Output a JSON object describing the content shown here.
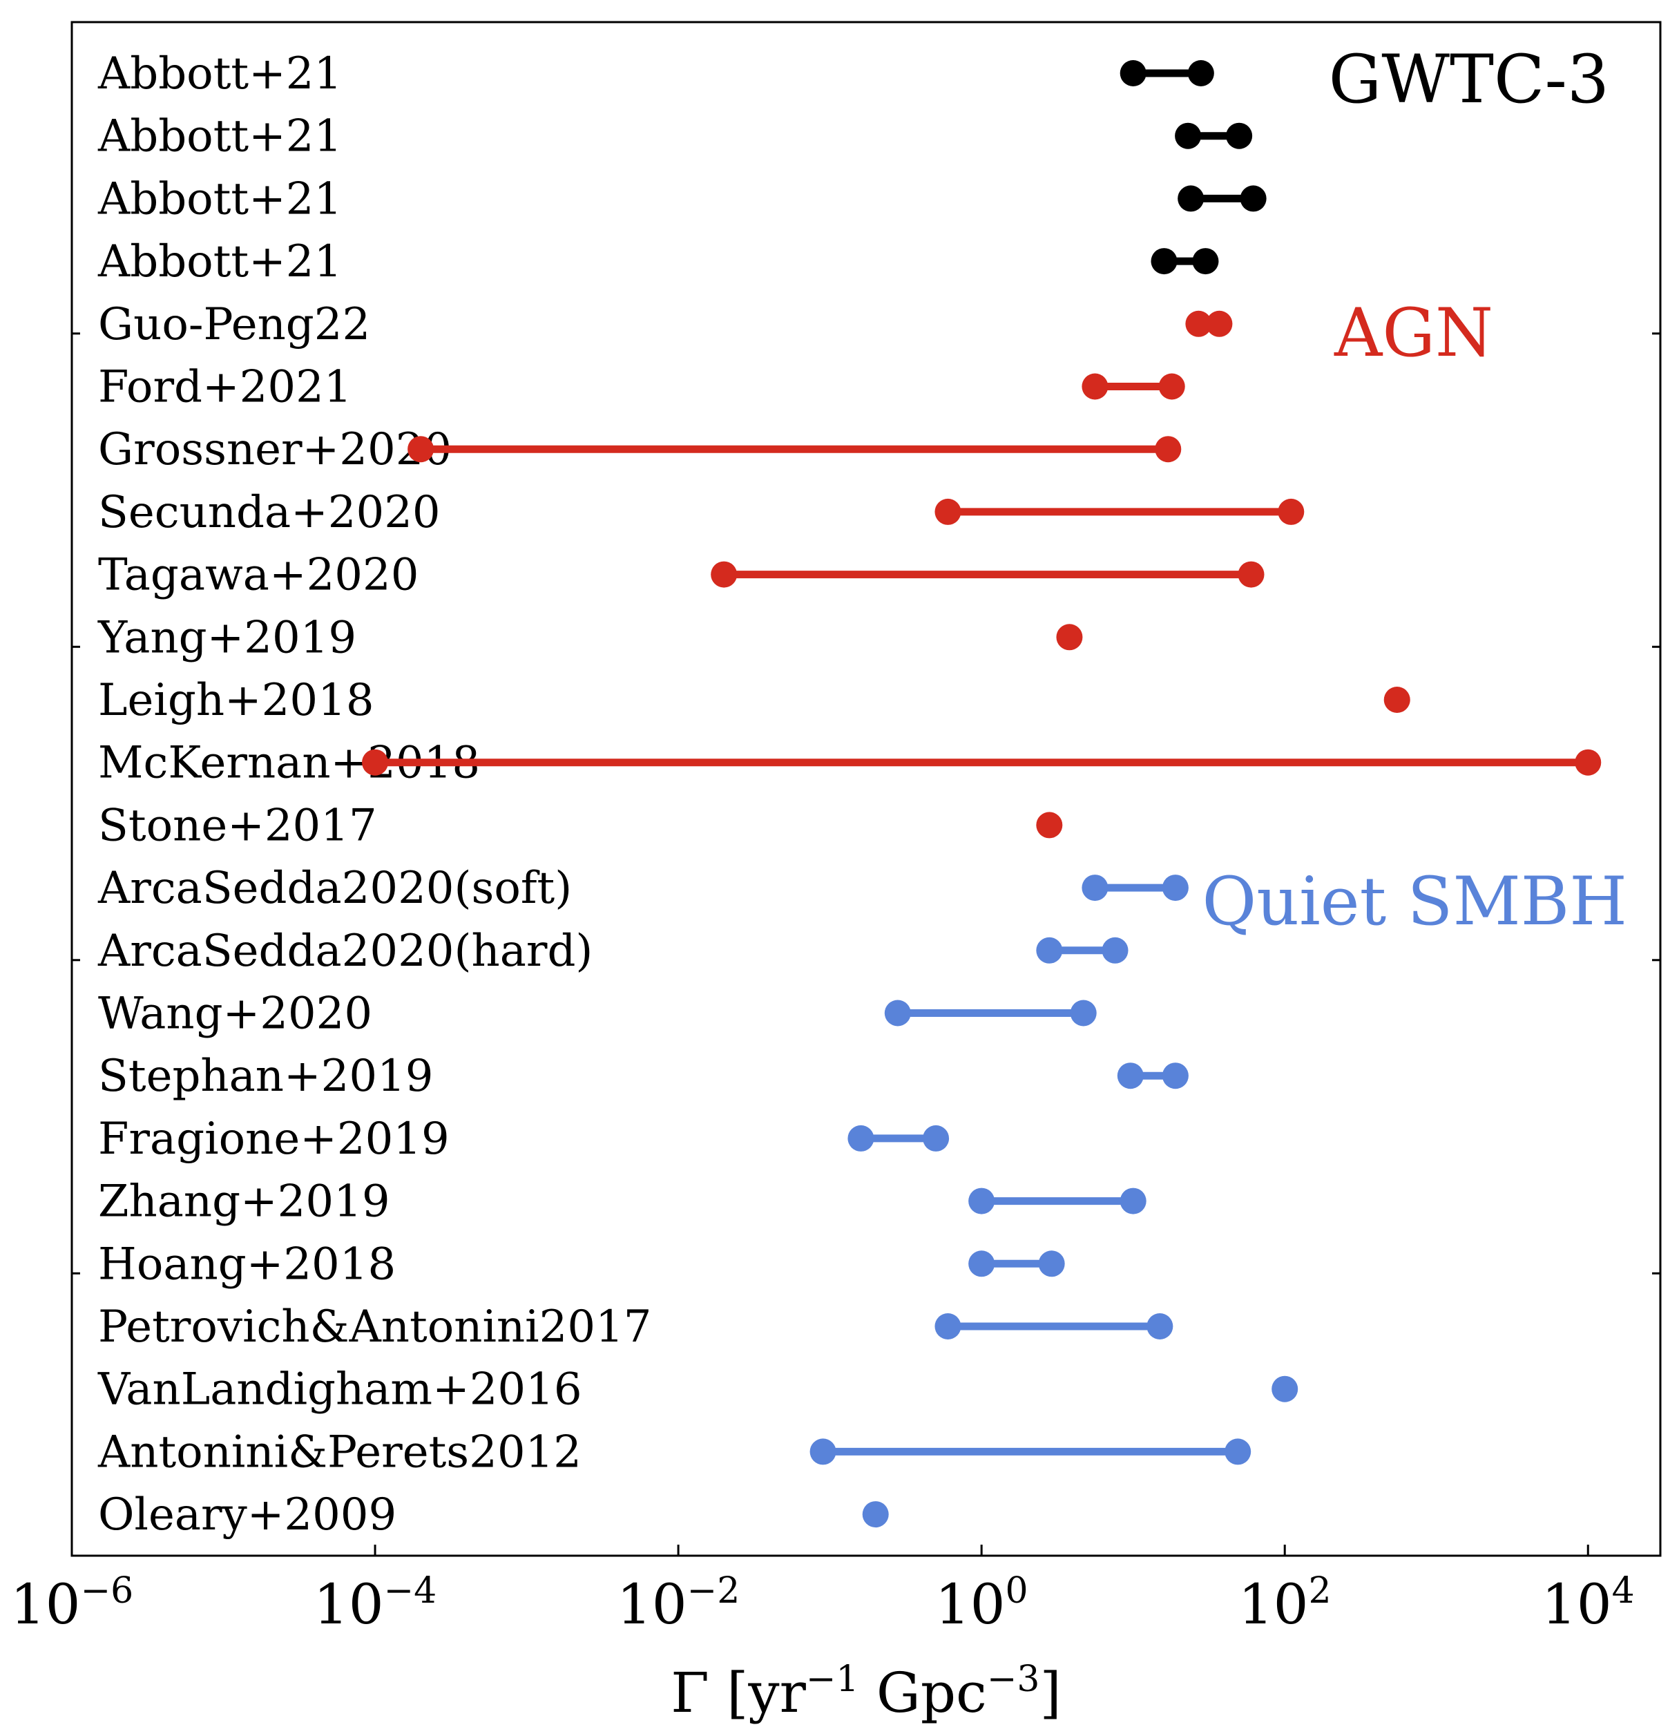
{
  "chart_data": {
    "type": "range-dot",
    "title": "",
    "xscale": "log",
    "xlim": [
      1e-06,
      30000
    ],
    "xticks": [
      {
        "base": "10",
        "exp": "−6",
        "value": 1e-06
      },
      {
        "base": "10",
        "exp": "−4",
        "value": 0.0001
      },
      {
        "base": "10",
        "exp": "−2",
        "value": 0.01
      },
      {
        "base": "10",
        "exp": "0",
        "value": 1
      },
      {
        "base": "10",
        "exp": "2",
        "value": 100
      },
      {
        "base": "10",
        "exp": "4",
        "value": 10000
      }
    ],
    "xlabel": {
      "main": "Γ [yr",
      "sup1": "−1",
      "mid": " Gpc",
      "sup2": "−3",
      "end": "]"
    },
    "groups": [
      {
        "name": "GWTC-3",
        "color": "#000000"
      },
      {
        "name": "AGN",
        "color": "#d42a1e"
      },
      {
        "name": "Quiet SMBH",
        "color": "#5983d9"
      }
    ],
    "rows": [
      {
        "label": "Abbott+21",
        "group": "GWTC-3",
        "low": 10,
        "high": 28
      },
      {
        "label": "Abbott+21",
        "group": "GWTC-3",
        "low": 23,
        "high": 50
      },
      {
        "label": "Abbott+21",
        "group": "GWTC-3",
        "low": 24,
        "high": 62
      },
      {
        "label": "Abbott+21",
        "group": "GWTC-3",
        "low": 16,
        "high": 30
      },
      {
        "label": "Guo-Peng22",
        "group": "AGN",
        "low": 27,
        "high": 37
      },
      {
        "label": "Ford+2021",
        "group": "AGN",
        "low": 5.6,
        "high": 18
      },
      {
        "label": "Grossner+2020",
        "group": "AGN",
        "low": 0.0002,
        "high": 17
      },
      {
        "label": "Secunda+2020",
        "group": "AGN",
        "low": 0.6,
        "high": 110
      },
      {
        "label": "Tagawa+2020",
        "group": "AGN",
        "low": 0.02,
        "high": 60
      },
      {
        "label": "Yang+2019",
        "group": "AGN",
        "value": 3.8
      },
      {
        "label": "Leigh+2018",
        "group": "AGN",
        "value": 550
      },
      {
        "label": "McKernan+2018",
        "group": "AGN",
        "low": 0.0001,
        "high": 10000
      },
      {
        "label": "Stone+2017",
        "group": "AGN",
        "value": 2.8
      },
      {
        "label": "ArcaSedda2020(soft)",
        "group": "Quiet SMBH",
        "low": 5.6,
        "high": 19
      },
      {
        "label": "ArcaSedda2020(hard)",
        "group": "Quiet SMBH",
        "low": 2.8,
        "high": 7.6
      },
      {
        "label": "Wang+2020",
        "group": "Quiet SMBH",
        "low": 0.28,
        "high": 4.7
      },
      {
        "label": "Stephan+2019",
        "group": "Quiet SMBH",
        "low": 9.6,
        "high": 19
      },
      {
        "label": "Fragione+2019",
        "group": "Quiet SMBH",
        "low": 0.16,
        "high": 0.5
      },
      {
        "label": "Zhang+2019",
        "group": "Quiet SMBH",
        "low": 1,
        "high": 10
      },
      {
        "label": "Hoang+2018",
        "group": "Quiet SMBH",
        "low": 1,
        "high": 2.9
      },
      {
        "label": "Petrovich&Antonini2017",
        "group": "Quiet SMBH",
        "low": 0.6,
        "high": 15
      },
      {
        "label": "VanLandigham+2016",
        "group": "Quiet SMBH",
        "value": 100
      },
      {
        "label": "Antonini&Perets2012",
        "group": "Quiet SMBH",
        "low": 0.09,
        "high": 49
      },
      {
        "label": "Oleary+2009",
        "group": "Quiet SMBH",
        "value": 0.2
      }
    ]
  }
}
